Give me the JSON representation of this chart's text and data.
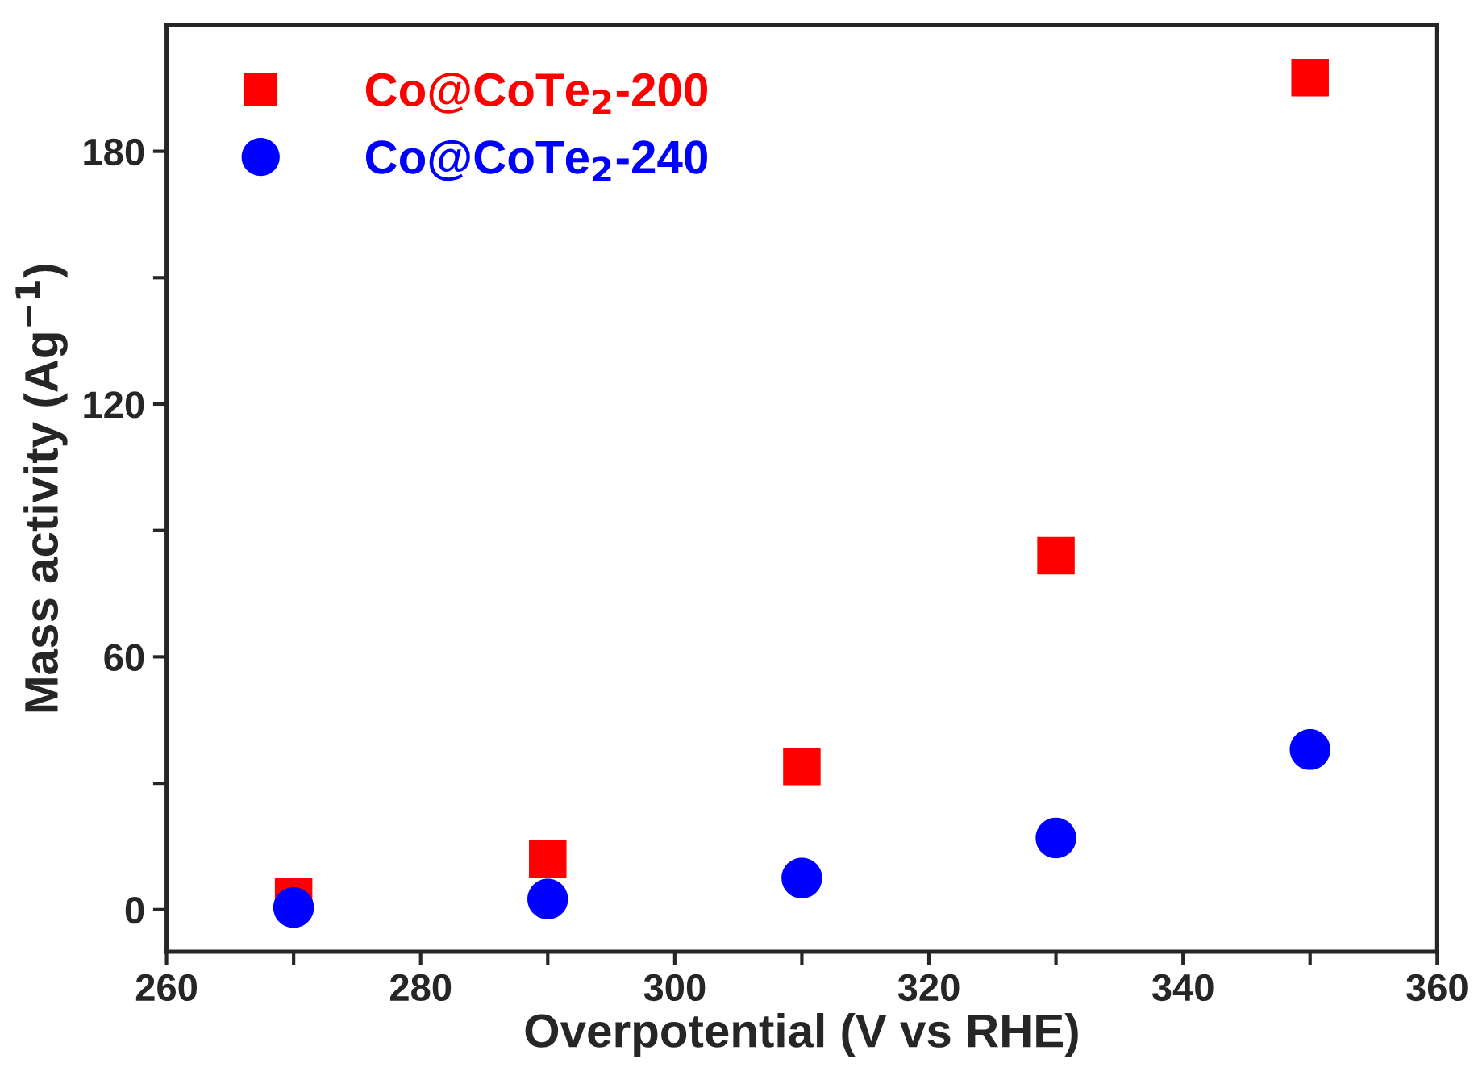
{
  "chart_data": {
    "type": "scatter",
    "xlabel": "Overpotential (V vs RHE)",
    "ylabel": "Mass activity (Ag$^{−1}$)",
    "xlim": [
      260,
      360
    ],
    "ylim": [
      -10,
      210
    ],
    "xticks": [
      260,
      {
        "value": 270,
        "label": null
      },
      280,
      {
        "value": 290,
        "label": null
      },
      300,
      {
        "value": 310,
        "label": null
      },
      320,
      {
        "value": 330,
        "label": null
      },
      340,
      {
        "value": 350,
        "label": null
      },
      360
    ],
    "yticks": [
      0,
      {
        "value": 30,
        "label": null
      },
      60,
      {
        "value": 90,
        "label": null
      },
      120,
      {
        "value": 150,
        "label": null
      },
      180
    ],
    "legend": "top left",
    "grid": false,
    "series": [
      {
        "name": "Co@CoTe$_{2}$-200",
        "color": "#ff0000",
        "marker": "square",
        "x": [
          270,
          290,
          310,
          330,
          350
        ],
        "values": [
          3,
          12,
          34,
          84,
          197.5
        ]
      },
      {
        "name": "Co@CoTe$_{2}$-240",
        "color": "#0000ff",
        "marker": "circle",
        "x": [
          270,
          290,
          310,
          330,
          350
        ],
        "values": [
          0.5,
          2.5,
          7.5,
          17,
          38
        ]
      }
    ]
  }
}
